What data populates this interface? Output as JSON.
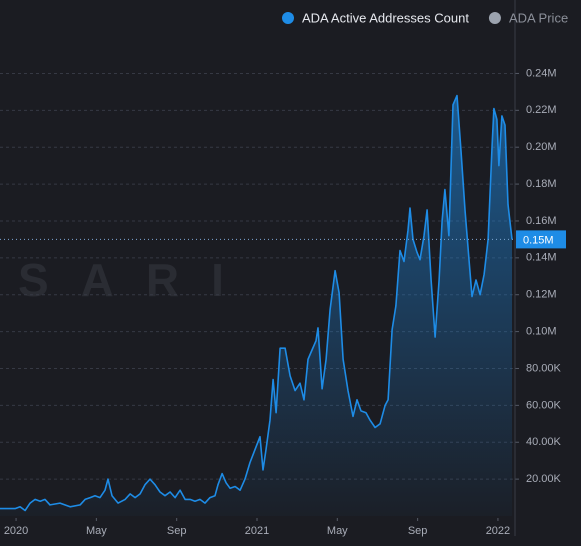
{
  "chart_data": {
    "type": "area",
    "watermark": "SARI",
    "xlim": [
      -0.8,
      24.85
    ],
    "xticks": [
      {
        "value": 0,
        "label": "2020"
      },
      {
        "value": 4,
        "label": "May"
      },
      {
        "value": 8,
        "label": "Sep"
      },
      {
        "value": 12,
        "label": "2021"
      },
      {
        "value": 16,
        "label": "May"
      },
      {
        "value": 20,
        "label": "Sep"
      },
      {
        "value": 24,
        "label": "2022"
      }
    ],
    "ylim": [
      0,
      250000
    ],
    "yticks": [
      {
        "value": 20000,
        "label": "20.00K"
      },
      {
        "value": 40000,
        "label": "40.00K"
      },
      {
        "value": 60000,
        "label": "60.00K"
      },
      {
        "value": 80000,
        "label": "80.00K"
      },
      {
        "value": 100000,
        "label": "0.10M"
      },
      {
        "value": 120000,
        "label": "0.12M"
      },
      {
        "value": 140000,
        "label": "0.14M"
      },
      {
        "value": 160000,
        "label": "0.16M"
      },
      {
        "value": 180000,
        "label": "0.18M"
      },
      {
        "value": 200000,
        "label": "0.20M"
      },
      {
        "value": 220000,
        "label": "0.22M"
      },
      {
        "value": 240000,
        "label": "0.24M"
      }
    ],
    "grid": true,
    "current_value": {
      "value": 150000,
      "label": "0.15M"
    },
    "series": [
      {
        "name": "ADA Active Addresses Count",
        "color": "#1e8ce6",
        "x": [
          -0.8,
          -0.05,
          0.2,
          0.45,
          0.7,
          0.95,
          1.2,
          1.44,
          1.69,
          2.19,
          2.69,
          3.19,
          3.44,
          3.69,
          3.93,
          4.18,
          4.43,
          4.58,
          4.78,
          5.08,
          5.43,
          5.68,
          5.93,
          6.18,
          6.42,
          6.67,
          6.92,
          7.17,
          7.42,
          7.67,
          7.92,
          8.17,
          8.42,
          8.67,
          8.91,
          9.16,
          9.41,
          9.66,
          9.91,
          10.06,
          10.26,
          10.46,
          10.66,
          10.91,
          11.16,
          11.4,
          11.65,
          11.9,
          12.15,
          12.3,
          12.45,
          12.65,
          12.8,
          12.95,
          13.15,
          13.4,
          13.65,
          13.9,
          14.14,
          14.34,
          14.54,
          14.74,
          14.94,
          15.04,
          15.24,
          15.44,
          15.64,
          15.89,
          16.09,
          16.29,
          16.53,
          16.78,
          16.98,
          17.18,
          17.43,
          17.63,
          17.88,
          18.13,
          18.38,
          18.53,
          18.73,
          18.92,
          19.12,
          19.32,
          19.52,
          19.62,
          19.77,
          19.97,
          20.12,
          20.32,
          20.47,
          20.67,
          20.87,
          21.07,
          21.22,
          21.36,
          21.56,
          21.76,
          21.96,
          22.16,
          22.36,
          22.56,
          22.71,
          22.91,
          23.11,
          23.31,
          23.51,
          23.71,
          23.8,
          23.95,
          24.05,
          24.2,
          24.35,
          24.5,
          24.7
        ],
        "values": [
          4000,
          4000,
          5000,
          3000,
          7000,
          9000,
          8000,
          9000,
          6000,
          7000,
          5000,
          6000,
          9000,
          10000,
          11000,
          10000,
          14000,
          20000,
          11000,
          7000,
          9000,
          12000,
          10000,
          12000,
          17000,
          20000,
          17000,
          13000,
          11000,
          13000,
          10000,
          14000,
          9000,
          9000,
          8000,
          9000,
          7000,
          10000,
          11000,
          17000,
          23000,
          18000,
          15000,
          16000,
          14000,
          20000,
          29000,
          36000,
          43000,
          25000,
          36000,
          52000,
          74000,
          56000,
          91000,
          91000,
          76000,
          68000,
          72000,
          63000,
          85000,
          90000,
          95000,
          102000,
          69000,
          85000,
          112000,
          133000,
          121000,
          85000,
          68000,
          54000,
          63000,
          57000,
          56000,
          52000,
          48000,
          50000,
          60000,
          63000,
          101000,
          114000,
          144000,
          138000,
          155000,
          167000,
          150000,
          143000,
          139000,
          152000,
          166000,
          128000,
          97000,
          128000,
          160000,
          177000,
          152000,
          223000,
          228000,
          198000,
          166000,
          139000,
          119000,
          128000,
          120000,
          131000,
          150000,
          201000,
          221000,
          215000,
          190000,
          217000,
          212000,
          169000,
          150000
        ]
      },
      {
        "name": "ADA Price",
        "color": "#9ca3af",
        "hidden": true,
        "x": [],
        "values": []
      }
    ]
  }
}
